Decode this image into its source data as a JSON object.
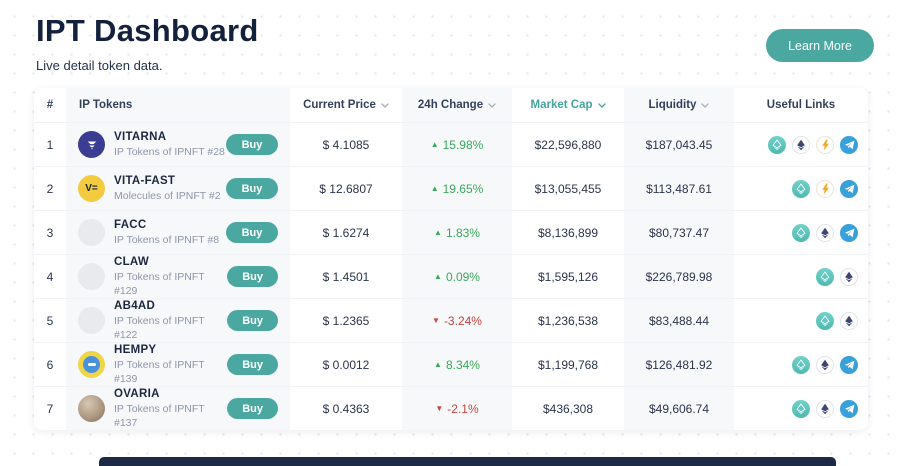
{
  "page": {
    "title": "IPT Dashboard",
    "subtitle": "Live detail token data.",
    "learn_more_label": "Learn More"
  },
  "colors": {
    "accent_teal": "#4BA8A1",
    "navy": "#13213c",
    "positive_green": "#3AA65C",
    "negative_red": "#C2453F",
    "active_sort_header": "#47A39C"
  },
  "table": {
    "headers": [
      {
        "label": "#",
        "sortable": false
      },
      {
        "label": "IP Tokens",
        "sortable": false
      },
      {
        "label": "Current Price",
        "sortable": true
      },
      {
        "label": "24h Change",
        "sortable": true
      },
      {
        "label": "Market Cap",
        "sortable": true,
        "active": true
      },
      {
        "label": "Liquidity",
        "sortable": true
      },
      {
        "label": "Useful Links",
        "sortable": false
      }
    ],
    "rows": [
      {
        "rank": "1",
        "name": "VITARNA",
        "subtitle": "IP Tokens of IPNFT #28",
        "buy_label": "Buy",
        "logo": {
          "type": "vitarna",
          "text": ""
        },
        "price": "$ 4.1085",
        "direction": "up",
        "change": "15.98%",
        "market_cap": "$22,596,880",
        "liquidity": "$187,043.45",
        "links": [
          "swap",
          "eth",
          "bolt",
          "telegram"
        ]
      },
      {
        "rank": "2",
        "name": "VITA-FAST",
        "subtitle": "Molecules of IPNFT #2",
        "buy_label": "Buy",
        "logo": {
          "type": "vitafast",
          "text": "V="
        },
        "price": "$ 12.6807",
        "direction": "up",
        "change": "19.65%",
        "market_cap": "$13,055,455",
        "liquidity": "$113,487.61",
        "links": [
          "swap",
          "bolt",
          "telegram"
        ]
      },
      {
        "rank": "3",
        "name": "FACC",
        "subtitle": "IP Tokens of IPNFT #8",
        "buy_label": "Buy",
        "logo": {
          "type": "placeholder",
          "text": ""
        },
        "price": "$ 1.6274",
        "direction": "up",
        "change": "1.83%",
        "market_cap": "$8,136,899",
        "liquidity": "$80,737.47",
        "links": [
          "swap",
          "eth",
          "telegram"
        ]
      },
      {
        "rank": "4",
        "name": "CLAW",
        "subtitle": "IP Tokens of IPNFT #129",
        "buy_label": "Buy",
        "logo": {
          "type": "placeholder",
          "text": ""
        },
        "price": "$ 1.4501",
        "direction": "up",
        "change": "0.09%",
        "market_cap": "$1,595,126",
        "liquidity": "$226,789.98",
        "links": [
          "swap",
          "eth"
        ]
      },
      {
        "rank": "5",
        "name": "AB4AD",
        "subtitle": "IP Tokens of IPNFT #122",
        "buy_label": "Buy",
        "logo": {
          "type": "placeholder",
          "text": ""
        },
        "price": "$ 1.2365",
        "direction": "down",
        "change": "-3.24%",
        "market_cap": "$1,236,538",
        "liquidity": "$83,488.44",
        "links": [
          "swap",
          "eth"
        ]
      },
      {
        "rank": "6",
        "name": "HEMPY",
        "subtitle": "IP Tokens of IPNFT #139",
        "buy_label": "Buy",
        "logo": {
          "type": "hempy",
          "text": ""
        },
        "price": "$ 0.0012",
        "direction": "up",
        "change": "8.34%",
        "market_cap": "$1,199,768",
        "liquidity": "$126,481.92",
        "links": [
          "swap",
          "eth",
          "telegram"
        ]
      },
      {
        "rank": "7",
        "name": "OVARIA",
        "subtitle": "IP Tokens of IPNFT #137",
        "buy_label": "Buy",
        "logo": {
          "type": "ovaria",
          "text": ""
        },
        "price": "$ 0.4363",
        "direction": "down",
        "change": "-2.1%",
        "market_cap": "$436,308",
        "liquidity": "$49,606.74",
        "links": [
          "swap",
          "eth",
          "telegram"
        ]
      }
    ]
  }
}
